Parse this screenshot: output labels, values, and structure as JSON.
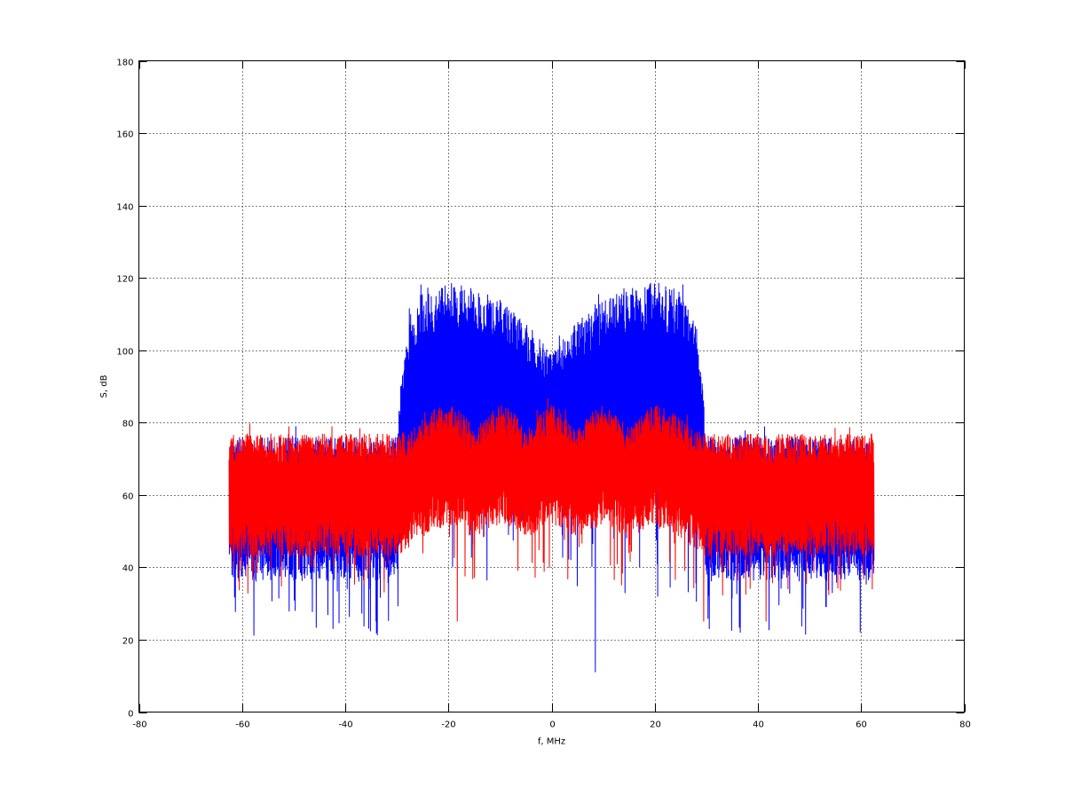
{
  "chart_data": {
    "type": "line",
    "title": "",
    "xlabel": "f, MHz",
    "ylabel": "S, dB",
    "xlim": [
      -80,
      80
    ],
    "ylim": [
      0,
      180
    ],
    "xticks": [
      -80,
      -60,
      -40,
      -20,
      0,
      20,
      40,
      60,
      80
    ],
    "yticks": [
      0,
      20,
      40,
      60,
      80,
      100,
      120,
      140,
      160,
      180
    ],
    "grid": true,
    "series": [
      {
        "color": "#0000ff",
        "f": [
          -62.5,
          -30,
          -29,
          -28,
          -25,
          -20,
          -15,
          -10,
          -5,
          -2,
          0,
          2,
          5,
          10,
          15,
          20,
          25,
          28,
          29,
          30,
          62.5
        ],
        "upper": [
          76,
          76,
          95,
          108,
          117,
          119,
          117,
          114,
          108,
          103,
          99,
          103,
          108,
          114,
          117,
          119,
          117,
          108,
          95,
          76,
          76
        ],
        "lower": [
          36,
          36,
          55,
          60,
          62,
          62,
          62,
          62,
          62,
          62,
          62,
          62,
          62,
          62,
          62,
          62,
          62,
          60,
          55,
          36,
          36
        ],
        "min_spike": 11
      },
      {
        "color": "#ff0000",
        "f": [
          -62.5,
          -30,
          -27.5,
          -25,
          -22.5,
          -20,
          -17.5,
          -15,
          -12.5,
          -10,
          -7.5,
          -5,
          -2.5,
          0,
          2.5,
          5,
          7.5,
          10,
          12.5,
          15,
          17.5,
          20,
          22.5,
          25,
          27.5,
          30,
          62.5
        ],
        "upper": [
          77,
          77,
          78,
          81,
          84,
          85,
          83,
          79,
          82,
          85,
          83,
          78,
          82,
          85,
          82,
          78,
          83,
          85,
          82,
          79,
          83,
          85,
          84,
          81,
          78,
          77,
          77
        ],
        "lower": [
          43,
          43,
          45,
          48,
          50,
          52,
          50,
          48,
          50,
          52,
          50,
          48,
          50,
          52,
          50,
          48,
          50,
          52,
          50,
          48,
          50,
          52,
          50,
          48,
          45,
          43,
          43
        ],
        "min_spike": 25
      }
    ]
  }
}
